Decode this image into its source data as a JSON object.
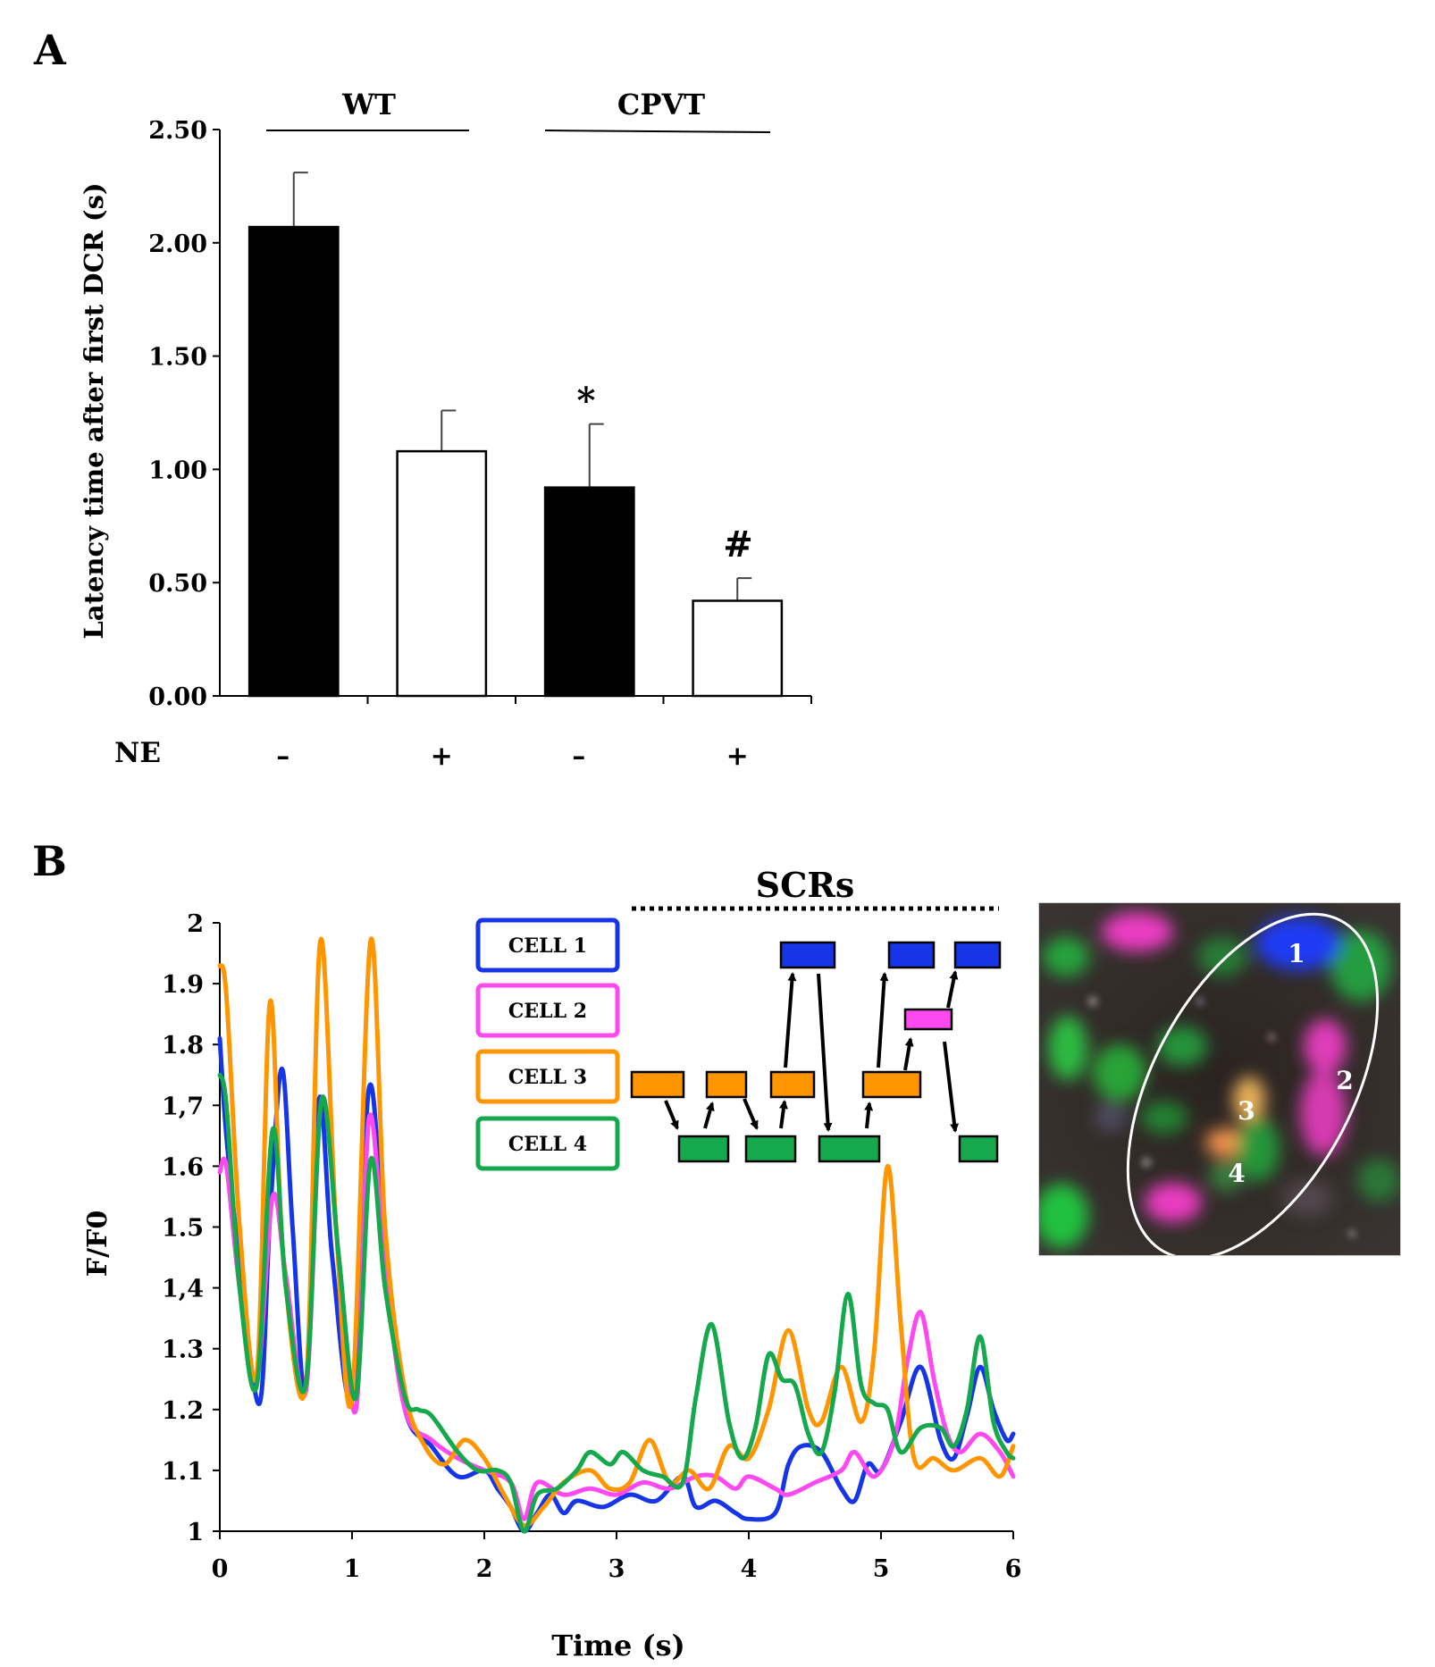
{
  "panel_a": {
    "label": "A",
    "group_labels": [
      "WT",
      "CPVT"
    ],
    "treatment_label": "NE",
    "treatment_signs": [
      "–",
      "+",
      "–",
      "+"
    ],
    "significance": [
      "*",
      "#"
    ]
  },
  "panel_b": {
    "label": "B",
    "scr_label": "SCRs",
    "cell_labels": [
      "CELL 1",
      "CELL 2",
      "CELL 3",
      "CELL 4"
    ],
    "cell_colors": [
      "#1535e6",
      "#ff49f0",
      "#ff9500",
      "#15a84c"
    ],
    "micrograph": {
      "description_icon": "cell-micrograph-icon",
      "cell_numbers": [
        "1",
        "2",
        "3",
        "4"
      ]
    }
  },
  "chart_data": [
    {
      "type": "bar",
      "ylabel": "Latency time after first DCR (s)",
      "xlabel": "",
      "ylim": [
        0,
        2.5
      ],
      "yticks": [
        "0.00",
        "0.50",
        "1.00",
        "1.50",
        "2.00",
        "2.50"
      ],
      "categories": [
        "WT –",
        "WT +",
        "CPVT –",
        "CPVT +"
      ],
      "values": [
        2.07,
        1.08,
        0.92,
        0.42
      ],
      "errors": [
        0.24,
        0.18,
        0.28,
        0.1
      ],
      "fills": [
        "#000000",
        "#ffffff",
        "#000000",
        "#ffffff"
      ]
    },
    {
      "type": "line",
      "xlabel": "Time (s)",
      "ylabel": "F/F0",
      "xlim": [
        0,
        6
      ],
      "ylim": [
        1,
        2
      ],
      "xticks": [
        "0",
        "1",
        "2",
        "3",
        "4",
        "5",
        "6"
      ],
      "yticks": [
        "1",
        "1.1",
        "1.2",
        "1.3",
        "1,4",
        "1.5",
        "1.6",
        "1,7",
        "1.8",
        "1.9",
        "2"
      ],
      "series": [
        {
          "name": "CELL 1",
          "color": "#1535e6",
          "points": [
            [
              0,
              1.81
            ],
            [
              0.05,
              1.65
            ],
            [
              0.15,
              1.44
            ],
            [
              0.3,
              1.21
            ],
            [
              0.38,
              1.52
            ],
            [
              0.47,
              1.76
            ],
            [
              0.55,
              1.5
            ],
            [
              0.65,
              1.23
            ],
            [
              0.75,
              1.71
            ],
            [
              0.85,
              1.45
            ],
            [
              1.0,
              1.22
            ],
            [
              1.13,
              1.73
            ],
            [
              1.25,
              1.45
            ],
            [
              1.4,
              1.2
            ],
            [
              1.6,
              1.14
            ],
            [
              1.8,
              1.09
            ],
            [
              2.0,
              1.1
            ],
            [
              2.1,
              1.07
            ],
            [
              2.2,
              1.04
            ],
            [
              2.3,
              1.0
            ],
            [
              2.4,
              1.03
            ],
            [
              2.5,
              1.06
            ],
            [
              2.6,
              1.03
            ],
            [
              2.7,
              1.05
            ],
            [
              2.9,
              1.04
            ],
            [
              3.1,
              1.06
            ],
            [
              3.3,
              1.05
            ],
            [
              3.5,
              1.09
            ],
            [
              3.6,
              1.04
            ],
            [
              3.75,
              1.05
            ],
            [
              3.9,
              1.03
            ],
            [
              4.0,
              1.02
            ],
            [
              4.2,
              1.03
            ],
            [
              4.3,
              1.11
            ],
            [
              4.4,
              1.14
            ],
            [
              4.55,
              1.13
            ],
            [
              4.7,
              1.07
            ],
            [
              4.8,
              1.05
            ],
            [
              4.9,
              1.11
            ],
            [
              5.0,
              1.1
            ],
            [
              5.15,
              1.18
            ],
            [
              5.3,
              1.27
            ],
            [
              5.45,
              1.15
            ],
            [
              5.55,
              1.12
            ],
            [
              5.65,
              1.19
            ],
            [
              5.75,
              1.27
            ],
            [
              5.85,
              1.2
            ],
            [
              5.95,
              1.15
            ],
            [
              6.0,
              1.16
            ]
          ]
        },
        {
          "name": "CELL 2",
          "color": "#ff49f0",
          "points": [
            [
              0,
              1.59
            ],
            [
              0.05,
              1.6
            ],
            [
              0.15,
              1.4
            ],
            [
              0.28,
              1.25
            ],
            [
              0.4,
              1.55
            ],
            [
              0.5,
              1.42
            ],
            [
              0.65,
              1.23
            ],
            [
              0.77,
              1.71
            ],
            [
              0.9,
              1.45
            ],
            [
              1.03,
              1.2
            ],
            [
              1.13,
              1.68
            ],
            [
              1.25,
              1.43
            ],
            [
              1.4,
              1.2
            ],
            [
              1.6,
              1.15
            ],
            [
              1.8,
              1.12
            ],
            [
              2.0,
              1.1
            ],
            [
              2.2,
              1.08
            ],
            [
              2.3,
              1.02
            ],
            [
              2.4,
              1.08
            ],
            [
              2.6,
              1.06
            ],
            [
              2.8,
              1.07
            ],
            [
              3.0,
              1.06
            ],
            [
              3.2,
              1.08
            ],
            [
              3.4,
              1.07
            ],
            [
              3.6,
              1.09
            ],
            [
              3.75,
              1.09
            ],
            [
              3.9,
              1.07
            ],
            [
              4.0,
              1.09
            ],
            [
              4.2,
              1.07
            ],
            [
              4.3,
              1.06
            ],
            [
              4.5,
              1.08
            ],
            [
              4.7,
              1.1
            ],
            [
              4.8,
              1.13
            ],
            [
              4.95,
              1.09
            ],
            [
              5.1,
              1.15
            ],
            [
              5.2,
              1.28
            ],
            [
              5.3,
              1.36
            ],
            [
              5.4,
              1.25
            ],
            [
              5.5,
              1.16
            ],
            [
              5.6,
              1.13
            ],
            [
              5.75,
              1.16
            ],
            [
              5.9,
              1.13
            ],
            [
              6.0,
              1.09
            ]
          ]
        },
        {
          "name": "CELL 3",
          "color": "#ff9500",
          "points": [
            [
              0,
              1.93
            ],
            [
              0.05,
              1.88
            ],
            [
              0.15,
              1.5
            ],
            [
              0.28,
              1.26
            ],
            [
              0.38,
              1.87
            ],
            [
              0.48,
              1.45
            ],
            [
              0.65,
              1.24
            ],
            [
              0.76,
              1.97
            ],
            [
              0.88,
              1.5
            ],
            [
              1.0,
              1.22
            ],
            [
              1.14,
              1.97
            ],
            [
              1.25,
              1.5
            ],
            [
              1.4,
              1.23
            ],
            [
              1.55,
              1.14
            ],
            [
              1.7,
              1.11
            ],
            [
              1.85,
              1.15
            ],
            [
              2.0,
              1.12
            ],
            [
              2.15,
              1.06
            ],
            [
              2.3,
              1.01
            ],
            [
              2.45,
              1.04
            ],
            [
              2.6,
              1.08
            ],
            [
              2.8,
              1.1
            ],
            [
              2.95,
              1.07
            ],
            [
              3.1,
              1.08
            ],
            [
              3.25,
              1.15
            ],
            [
              3.4,
              1.08
            ],
            [
              3.55,
              1.1
            ],
            [
              3.7,
              1.07
            ],
            [
              3.85,
              1.14
            ],
            [
              4.0,
              1.12
            ],
            [
              4.15,
              1.2
            ],
            [
              4.3,
              1.33
            ],
            [
              4.45,
              1.2
            ],
            [
              4.55,
              1.18
            ],
            [
              4.7,
              1.27
            ],
            [
              4.85,
              1.18
            ],
            [
              4.95,
              1.3
            ],
            [
              5.05,
              1.6
            ],
            [
              5.15,
              1.34
            ],
            [
              5.25,
              1.12
            ],
            [
              5.4,
              1.12
            ],
            [
              5.55,
              1.1
            ],
            [
              5.75,
              1.12
            ],
            [
              5.9,
              1.09
            ],
            [
              6.0,
              1.14
            ]
          ]
        },
        {
          "name": "CELL 4",
          "color": "#15a84c",
          "points": [
            [
              0,
              1.75
            ],
            [
              0.05,
              1.7
            ],
            [
              0.15,
              1.4
            ],
            [
              0.28,
              1.24
            ],
            [
              0.4,
              1.66
            ],
            [
              0.5,
              1.4
            ],
            [
              0.65,
              1.24
            ],
            [
              0.77,
              1.71
            ],
            [
              0.9,
              1.45
            ],
            [
              1.03,
              1.22
            ],
            [
              1.14,
              1.61
            ],
            [
              1.25,
              1.4
            ],
            [
              1.4,
              1.22
            ],
            [
              1.5,
              1.2
            ],
            [
              1.6,
              1.19
            ],
            [
              1.8,
              1.13
            ],
            [
              1.95,
              1.1
            ],
            [
              2.1,
              1.1
            ],
            [
              2.2,
              1.08
            ],
            [
              2.3,
              1.0
            ],
            [
              2.4,
              1.06
            ],
            [
              2.55,
              1.07
            ],
            [
              2.7,
              1.1
            ],
            [
              2.8,
              1.13
            ],
            [
              2.95,
              1.11
            ],
            [
              3.05,
              1.13
            ],
            [
              3.2,
              1.1
            ],
            [
              3.35,
              1.09
            ],
            [
              3.5,
              1.08
            ],
            [
              3.6,
              1.22
            ],
            [
              3.72,
              1.34
            ],
            [
              3.85,
              1.18
            ],
            [
              3.95,
              1.12
            ],
            [
              4.05,
              1.17
            ],
            [
              4.15,
              1.29
            ],
            [
              4.25,
              1.25
            ],
            [
              4.35,
              1.24
            ],
            [
              4.45,
              1.16
            ],
            [
              4.55,
              1.13
            ],
            [
              4.65,
              1.23
            ],
            [
              4.75,
              1.39
            ],
            [
              4.85,
              1.24
            ],
            [
              4.95,
              1.21
            ],
            [
              5.05,
              1.2
            ],
            [
              5.15,
              1.13
            ],
            [
              5.3,
              1.17
            ],
            [
              5.45,
              1.17
            ],
            [
              5.55,
              1.14
            ],
            [
              5.65,
              1.2
            ],
            [
              5.75,
              1.32
            ],
            [
              5.85,
              1.18
            ],
            [
              5.95,
              1.13
            ],
            [
              6.0,
              1.12
            ]
          ]
        }
      ]
    }
  ]
}
